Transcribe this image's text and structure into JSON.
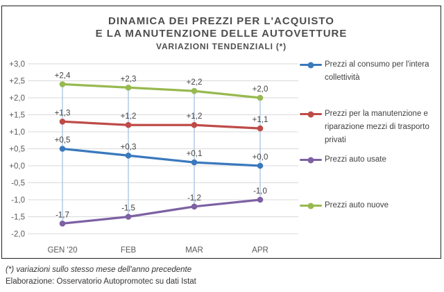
{
  "title": {
    "line1": "DINAMICA DEI PREZZI PER L'ACQUISTO",
    "line2": "E LA MANUTENZIONE DELLE AUTOVETTURE",
    "subtitle": "VARIAZIONI TENDENZIALI (*)"
  },
  "chart_data": {
    "type": "line",
    "title": "DINAMICA DEI PREZZI PER L'ACQUISTO E LA MANUTENZIONE DELLE AUTOVETTURE - VARIAZIONI TENDENZIALI (*)",
    "categories": [
      "GEN '20",
      "FEB",
      "MAR",
      "APR"
    ],
    "series": [
      {
        "name": "Prezzi al consumo per l'intera collettività",
        "color": "#3a79bd",
        "values": [
          0.5,
          0.3,
          0.1,
          0.0
        ],
        "labels": [
          "+0,5",
          "+0,3",
          "+0,1",
          "+0,0"
        ]
      },
      {
        "name": "Prezzi per la manutenzione e riparazione mezzi di trasporto privati",
        "color": "#be4b48",
        "values": [
          1.3,
          1.2,
          1.2,
          1.1
        ],
        "labels": [
          "+1,3",
          "+1,2",
          "+1,2",
          "+1,1"
        ]
      },
      {
        "name": "Prezzi auto usate",
        "color": "#7d61a3",
        "values": [
          -1.7,
          -1.5,
          -1.2,
          -1.0
        ],
        "labels": [
          "-1,7",
          "-1,5",
          "-1,2",
          "-1,0"
        ]
      },
      {
        "name": "Prezzi auto nuove",
        "color": "#97b94f",
        "values": [
          2.4,
          2.3,
          2.2,
          2.0
        ],
        "labels": [
          "+2,4",
          "+2,3",
          "+2,2",
          "+2,0"
        ]
      }
    ],
    "y_ticks": [
      "+3,0",
      "+2,5",
      "+2,0",
      "+1,5",
      "+1,0",
      "+0,5",
      "+0,0",
      "-0,5",
      "-1,0",
      "-1,5",
      "-2,0"
    ],
    "ylim": [
      -2.0,
      3.0
    ],
    "y_step": 0.5,
    "grid": true,
    "grid_color": "#d9d9d9",
    "highlow_lines": true,
    "highlow_color": "#b3c9e5",
    "label_color": "#404040",
    "axis_text_color": "#595959",
    "legend_position": "right",
    "xlabel": "",
    "ylabel": ""
  },
  "footnotes": {
    "note": "(*) variazioni sullo stesso mese dell'anno precedente",
    "source": "Elaborazione: Osservatorio Autopromotec su dati Istat"
  }
}
